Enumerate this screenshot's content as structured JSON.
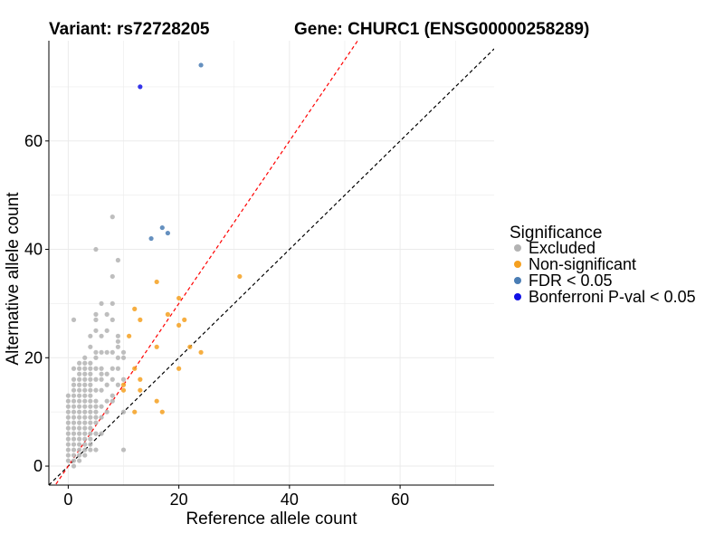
{
  "chart_data": {
    "type": "scatter",
    "title_left": "Variant: rs72728205",
    "title_right": "Gene: CHURC1 (ENSG00000258289)",
    "xlabel": "Reference allele count",
    "ylabel": "Alternative allele count",
    "xlim": [
      -3.5,
      77
    ],
    "ylim": [
      -3.5,
      78.5
    ],
    "xticks": [
      0,
      20,
      40,
      60
    ],
    "yticks": [
      0,
      20,
      40,
      60
    ],
    "grid": true,
    "legend": {
      "title": "Significance",
      "position": "right",
      "entries": [
        {
          "key": "excluded",
          "label": "Excluded",
          "color": "#b3b3b3"
        },
        {
          "key": "nonsig",
          "label": "Non-significant",
          "color": "#f5a020"
        },
        {
          "key": "fdr",
          "label": "FDR < 0.05",
          "color": "#4a7db4"
        },
        {
          "key": "bonf",
          "label": "Bonferroni P-val < 0.05",
          "color": "#1010e6"
        }
      ]
    },
    "reference_lines": [
      {
        "name": "identity",
        "slope": 1,
        "intercept": 0,
        "color": "#000000",
        "dash": "dashed"
      },
      {
        "name": "fitted",
        "slope": 1.5,
        "intercept": 0,
        "color": "#ff0000",
        "dash": "dashed"
      }
    ],
    "series": [
      {
        "name": "Excluded",
        "key": "excluded",
        "points": [
          [
            0,
            1
          ],
          [
            0,
            2
          ],
          [
            0,
            3
          ],
          [
            0,
            4
          ],
          [
            0,
            5
          ],
          [
            0,
            6
          ],
          [
            0,
            7
          ],
          [
            0,
            8
          ],
          [
            0,
            9
          ],
          [
            0,
            10
          ],
          [
            0,
            11
          ],
          [
            0,
            12
          ],
          [
            0,
            13
          ],
          [
            1,
            0
          ],
          [
            1,
            1
          ],
          [
            1,
            2
          ],
          [
            1,
            3
          ],
          [
            1,
            4
          ],
          [
            1,
            5
          ],
          [
            1,
            6
          ],
          [
            1,
            7
          ],
          [
            1,
            8
          ],
          [
            1,
            9
          ],
          [
            1,
            10
          ],
          [
            1,
            11
          ],
          [
            1,
            12
          ],
          [
            1,
            13
          ],
          [
            1,
            14
          ],
          [
            1,
            15
          ],
          [
            1,
            16
          ],
          [
            1,
            18
          ],
          [
            1,
            27
          ],
          [
            2,
            1
          ],
          [
            2,
            2
          ],
          [
            2,
            3
          ],
          [
            2,
            4
          ],
          [
            2,
            5
          ],
          [
            2,
            6
          ],
          [
            2,
            7
          ],
          [
            2,
            8
          ],
          [
            2,
            9
          ],
          [
            2,
            10
          ],
          [
            2,
            11
          ],
          [
            2,
            12
          ],
          [
            2,
            13
          ],
          [
            2,
            14
          ],
          [
            2,
            15
          ],
          [
            2,
            16
          ],
          [
            2,
            17
          ],
          [
            2,
            18
          ],
          [
            2,
            19
          ],
          [
            3,
            2
          ],
          [
            3,
            3
          ],
          [
            3,
            4
          ],
          [
            3,
            5
          ],
          [
            3,
            6
          ],
          [
            3,
            7
          ],
          [
            3,
            8
          ],
          [
            3,
            9
          ],
          [
            3,
            10
          ],
          [
            3,
            11
          ],
          [
            3,
            12
          ],
          [
            3,
            13
          ],
          [
            3,
            14
          ],
          [
            3,
            15
          ],
          [
            3,
            16
          ],
          [
            3,
            17
          ],
          [
            3,
            18
          ],
          [
            3,
            19
          ],
          [
            3,
            20
          ],
          [
            4,
            3
          ],
          [
            4,
            4
          ],
          [
            4,
            5
          ],
          [
            4,
            6
          ],
          [
            4,
            7
          ],
          [
            4,
            8
          ],
          [
            4,
            9
          ],
          [
            4,
            10
          ],
          [
            4,
            11
          ],
          [
            4,
            12
          ],
          [
            4,
            13
          ],
          [
            4,
            14
          ],
          [
            4,
            15
          ],
          [
            4,
            16
          ],
          [
            4,
            17
          ],
          [
            4,
            18
          ],
          [
            4,
            19
          ],
          [
            4,
            22
          ],
          [
            4,
            24
          ],
          [
            5,
            3
          ],
          [
            5,
            6
          ],
          [
            5,
            8
          ],
          [
            5,
            9
          ],
          [
            5,
            10
          ],
          [
            5,
            11
          ],
          [
            5,
            12
          ],
          [
            5,
            14
          ],
          [
            5,
            16
          ],
          [
            5,
            18
          ],
          [
            5,
            20
          ],
          [
            5,
            21
          ],
          [
            5,
            25
          ],
          [
            5,
            27
          ],
          [
            5,
            28
          ],
          [
            5,
            40
          ],
          [
            6,
            6
          ],
          [
            6,
            9
          ],
          [
            6,
            11
          ],
          [
            6,
            14
          ],
          [
            6,
            16
          ],
          [
            6,
            17
          ],
          [
            6,
            18
          ],
          [
            6,
            21
          ],
          [
            6,
            24
          ],
          [
            6,
            30
          ],
          [
            7,
            10
          ],
          [
            7,
            12
          ],
          [
            7,
            15
          ],
          [
            7,
            17
          ],
          [
            7,
            21
          ],
          [
            7,
            25
          ],
          [
            7,
            28
          ],
          [
            8,
            12
          ],
          [
            8,
            13
          ],
          [
            8,
            16
          ],
          [
            8,
            18
          ],
          [
            8,
            21
          ],
          [
            8,
            27
          ],
          [
            8,
            30
          ],
          [
            8,
            35
          ],
          [
            8,
            46
          ],
          [
            9,
            15
          ],
          [
            9,
            18
          ],
          [
            9,
            20
          ],
          [
            9,
            22
          ],
          [
            9,
            23
          ],
          [
            9,
            24
          ],
          [
            9,
            38
          ],
          [
            10,
            3
          ],
          [
            10,
            10
          ],
          [
            10,
            16
          ],
          [
            10,
            20
          ],
          [
            10,
            21
          ]
        ]
      },
      {
        "name": "Non-significant",
        "key": "nonsig",
        "points": [
          [
            10,
            14
          ],
          [
            10,
            15
          ],
          [
            11,
            24
          ],
          [
            12,
            10
          ],
          [
            12,
            18
          ],
          [
            12,
            29
          ],
          [
            13,
            14
          ],
          [
            13,
            16
          ],
          [
            13,
            27
          ],
          [
            16,
            12
          ],
          [
            16,
            22
          ],
          [
            16,
            34
          ],
          [
            17,
            10
          ],
          [
            18,
            28
          ],
          [
            20,
            18
          ],
          [
            20,
            26
          ],
          [
            20,
            31
          ],
          [
            21,
            27
          ],
          [
            22,
            22
          ],
          [
            24,
            21
          ],
          [
            31,
            35
          ]
        ]
      },
      {
        "name": "FDR < 0.05",
        "key": "fdr",
        "points": [
          [
            15,
            42
          ],
          [
            17,
            44
          ],
          [
            18,
            43
          ],
          [
            24,
            74
          ]
        ]
      },
      {
        "name": "Bonferroni P-val < 0.05",
        "key": "bonf",
        "points": [
          [
            13,
            70
          ]
        ]
      }
    ]
  }
}
